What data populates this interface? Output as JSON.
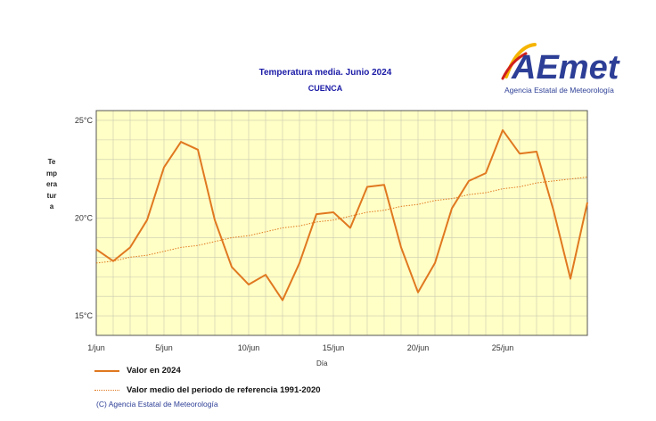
{
  "header": {
    "title": "Temperatura media. Junio 2024",
    "subtitle": "CUENCA"
  },
  "logo": {
    "wordmark": "AEmet",
    "caption": "Agencia Estatal de Meteorología"
  },
  "footer": {
    "copyright": "(C) Agencia Estatal de Meteorología"
  },
  "chart_data": {
    "type": "line",
    "title": "Temperatura media. Junio 2024",
    "subtitle": "CUENCA",
    "xlabel": "Día",
    "ylabel": "Temperatura",
    "x": [
      1,
      2,
      3,
      4,
      5,
      6,
      7,
      8,
      9,
      10,
      11,
      12,
      13,
      14,
      15,
      16,
      17,
      18,
      19,
      20,
      21,
      22,
      23,
      24,
      25,
      26,
      27,
      28,
      29,
      30
    ],
    "xlim": [
      1,
      30
    ],
    "ylim": [
      14,
      25.5
    ],
    "x_ticks": [
      1,
      5,
      10,
      15,
      20,
      25
    ],
    "x_tick_labels": [
      "1/jun",
      "5/jun",
      "10/jun",
      "15/jun",
      "20/jun",
      "25/jun"
    ],
    "y_ticks": [
      15,
      20,
      25
    ],
    "y_tick_labels": [
      "15°C",
      "20°C",
      "25°C"
    ],
    "grid": true,
    "legend_position": "bottom-left",
    "series": [
      {
        "name": "Valor en 2024",
        "style": "solid",
        "color": "#e07820",
        "values": [
          18.4,
          17.8,
          18.5,
          19.9,
          22.6,
          23.9,
          23.5,
          19.9,
          17.5,
          16.6,
          17.1,
          15.8,
          17.7,
          20.2,
          20.3,
          19.5,
          21.6,
          21.7,
          18.5,
          16.2,
          17.7,
          20.5,
          21.9,
          22.3,
          24.5,
          23.3,
          23.4,
          20.4,
          16.9,
          20.8
        ]
      },
      {
        "name": "Valor medio del periodo de referencia 1991-2020",
        "style": "dotted",
        "color": "#e07820",
        "values": [
          17.7,
          17.8,
          18.0,
          18.1,
          18.3,
          18.5,
          18.6,
          18.8,
          19.0,
          19.1,
          19.3,
          19.5,
          19.6,
          19.8,
          19.9,
          20.1,
          20.3,
          20.4,
          20.6,
          20.7,
          20.9,
          21.0,
          21.2,
          21.3,
          21.5,
          21.6,
          21.8,
          21.9,
          22.0,
          22.1
        ]
      }
    ]
  }
}
